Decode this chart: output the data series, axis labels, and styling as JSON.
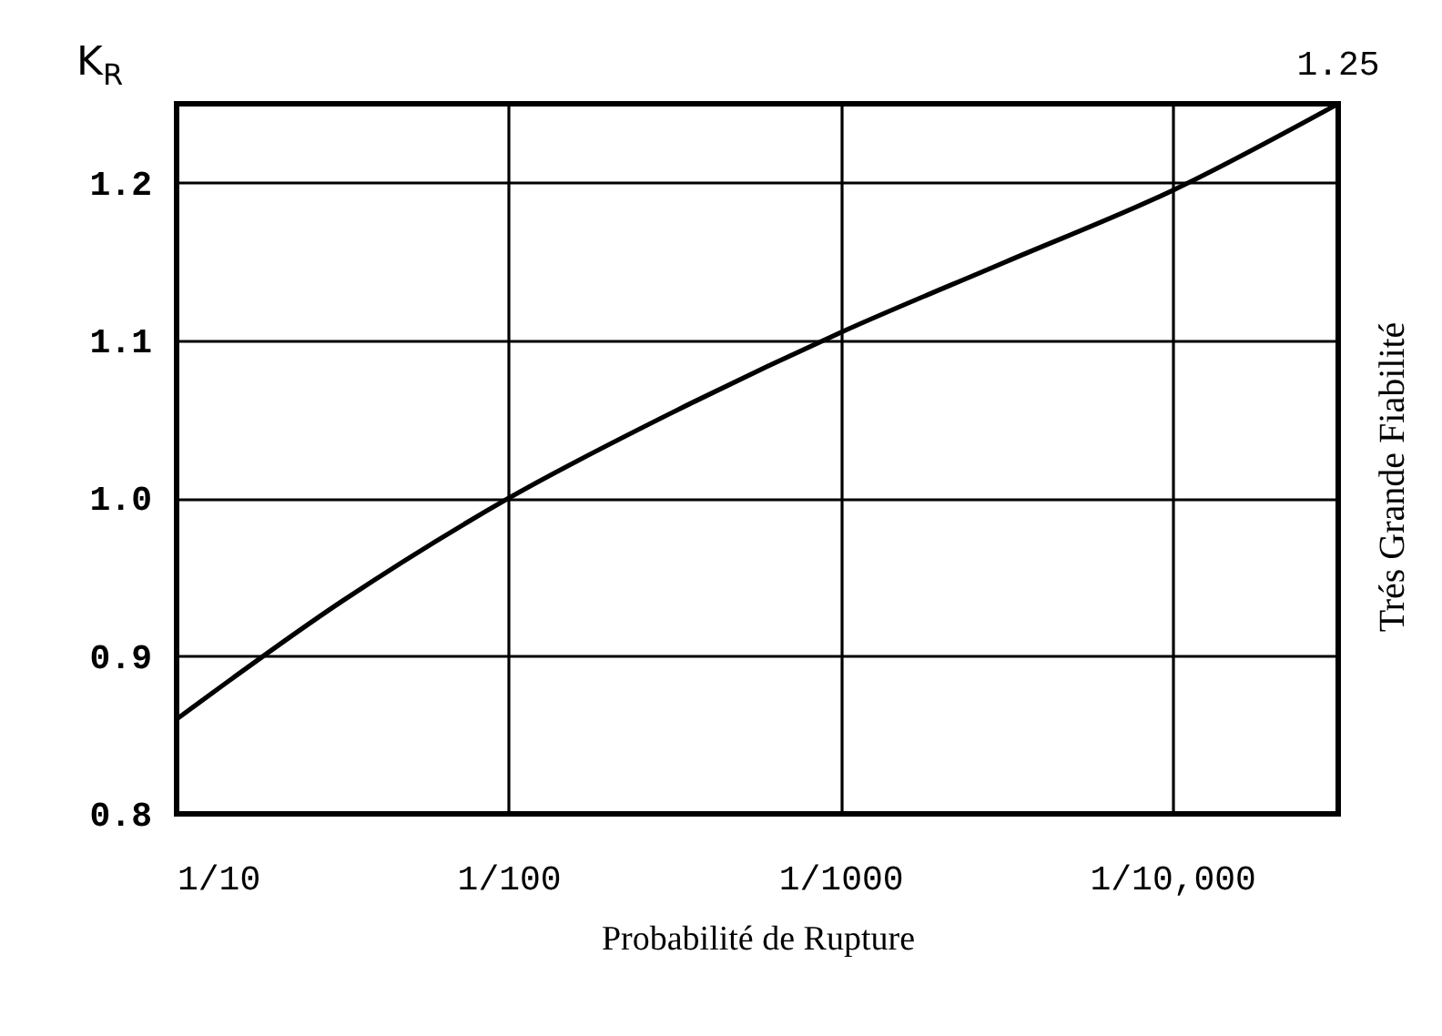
{
  "chart_data": {
    "type": "line",
    "xlabel": "Probabilité de Rupture",
    "ylabel": "K$_{R}$",
    "y2label": "Trés Grande Fiabilité",
    "categories": [
      "1/10",
      null,
      "1/100",
      null,
      "1/1000",
      null,
      "1/10,000",
      null
    ],
    "values": [
      0.86,
      0.935,
      1.0,
      1.055,
      1.105,
      1.15,
      1.195,
      1.25
    ],
    "value_labels": [
      null,
      null,
      null,
      null,
      null,
      null,
      null,
      "1.25"
    ],
    "color": "#000000",
    "ylim": [
      0.8,
      1.25
    ],
    "yticks": [
      {
        "value": 0.8,
        "label": "0.8"
      },
      {
        "value": 0.9,
        "label": "0.9"
      },
      {
        "value": 1.0,
        "label": "1.0"
      },
      {
        "value": 1.1,
        "label": "1.1"
      },
      {
        "value": 1.2,
        "label": "1.2"
      }
    ],
    "grid": true
  }
}
